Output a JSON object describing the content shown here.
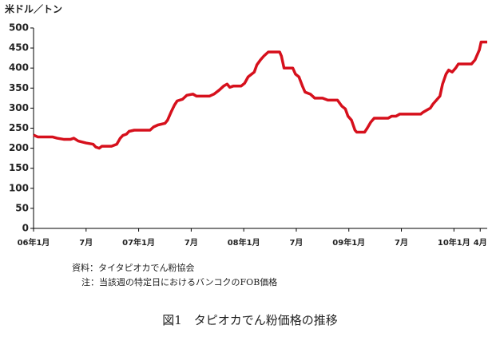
{
  "chart_data": {
    "type": "line",
    "y_axis_label": "米ドル／トン",
    "x": [
      0,
      0.5,
      2.2,
      2.7,
      3.5,
      4.2,
      4.6,
      5.1,
      6.0,
      6.8,
      7.1,
      7.5,
      7.8,
      8.9,
      9.5,
      9.9,
      10.2,
      10.6,
      10.9,
      11.5,
      13.3,
      13.7,
      14.2,
      15.0,
      15.3,
      15.7,
      16.1,
      16.4,
      17.0,
      17.5,
      18.2,
      18.6,
      20.1,
      20.6,
      21.2,
      21.7,
      22.1,
      22.4,
      22.8,
      23.7,
      24.1,
      24.5,
      25.2,
      25.5,
      25.9,
      26.3,
      26.8,
      28.1,
      28.3,
      28.6,
      29.6,
      29.9,
      30.3,
      30.7,
      31.0,
      31.6,
      32.1,
      33.0,
      33.6,
      34.7,
      35.2,
      35.6,
      35.9,
      36.3,
      36.7,
      36.9,
      37.8,
      38.1,
      38.5,
      38.9,
      40.5,
      40.9,
      41.4,
      41.8,
      44.2,
      44.5,
      45.3,
      45.6,
      46.0,
      46.4,
      46.7,
      47.1,
      47.4,
      47.8,
      48.2,
      48.5,
      50.0,
      50.4,
      50.9,
      51.1,
      51.8
    ],
    "series": [
      {
        "name": "price",
        "color": "#d6101c",
        "values": [
          233,
          228,
          228,
          225,
          222,
          222,
          225,
          218,
          213,
          210,
          203,
          200,
          205,
          205,
          210,
          225,
          232,
          235,
          242,
          245,
          245,
          253,
          258,
          262,
          270,
          290,
          308,
          318,
          322,
          332,
          335,
          330,
          330,
          335,
          345,
          355,
          360,
          352,
          355,
          355,
          362,
          378,
          390,
          408,
          420,
          430,
          440,
          440,
          430,
          400,
          400,
          385,
          378,
          355,
          340,
          335,
          325,
          325,
          320,
          320,
          305,
          298,
          280,
          270,
          245,
          240,
          240,
          250,
          265,
          275,
          275,
          280,
          280,
          285,
          285,
          290,
          300,
          310,
          320,
          330,
          360,
          385,
          395,
          390,
          400,
          410,
          410,
          420,
          445,
          465,
          465
        ]
      }
    ],
    "xlim": [
      0,
      51.8
    ],
    "ylim": [
      0,
      500
    ],
    "xticks": [
      {
        "value": 0,
        "label": "06年1月"
      },
      {
        "value": 6,
        "label": "7月"
      },
      {
        "value": 12,
        "label": "07年1月"
      },
      {
        "value": 18,
        "label": "7月"
      },
      {
        "value": 24,
        "label": "08年1月"
      },
      {
        "value": 30,
        "label": "7月"
      },
      {
        "value": 36,
        "label": "09年1月"
      },
      {
        "value": 42,
        "label": "7月"
      },
      {
        "value": 48,
        "label": "10年1月"
      },
      {
        "value": 51,
        "label": "4月"
      }
    ],
    "yticks": [
      0,
      50,
      100,
      150,
      200,
      250,
      300,
      350,
      400,
      450,
      500
    ],
    "grid": false,
    "notes": [
      "資料：タイタピオカでん粉協会",
      "注：当該週の特定日におけるバンコクのFOB価格"
    ],
    "caption": "図1　タピオカでん粉価格の推移"
  }
}
